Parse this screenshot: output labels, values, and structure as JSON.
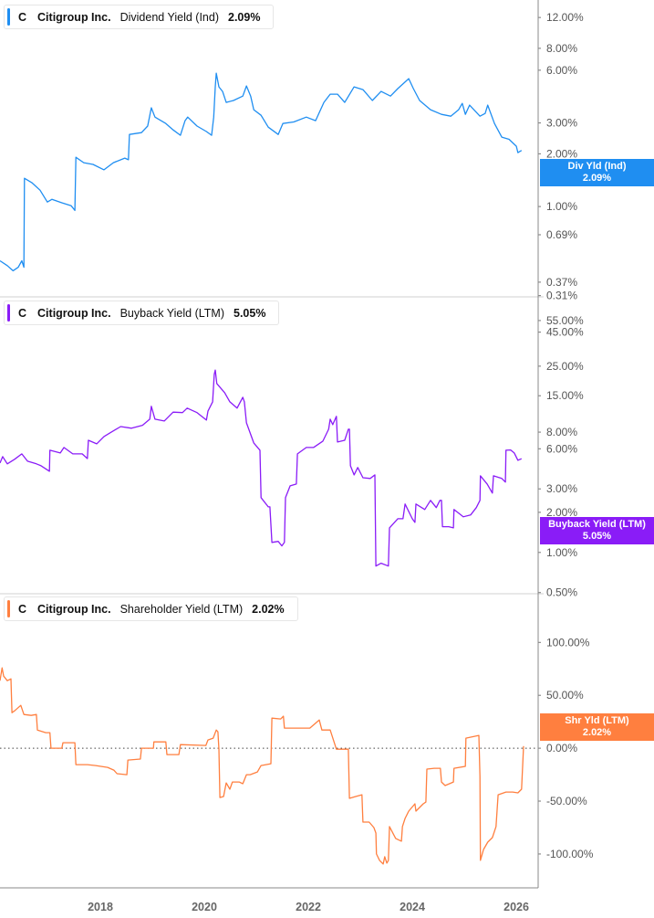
{
  "ticker": "C",
  "company": "Citigroup Inc.",
  "x_axis": {
    "ticks": [
      2018,
      2020,
      2022,
      2024,
      2026
    ],
    "labels": [
      "2018",
      "2020",
      "2022",
      "2024",
      "2026"
    ],
    "xlim": [
      2016.07,
      2026.42
    ]
  },
  "chart_data": [
    {
      "type": "line",
      "metric": "Dividend Yield (Ind)",
      "value": "2.09%",
      "tag_label": "Div Yld (Ind)",
      "color": "#1f8ef1",
      "scale": "log",
      "ylim": [
        0.305,
        15.1
      ],
      "y_ticks": [
        12,
        8,
        6,
        3,
        2,
        1,
        0.69,
        0.37,
        0.31
      ],
      "y_tick_labels": [
        "12.00%",
        "8.00%",
        "6.00%",
        "3.00%",
        "2.00%",
        "1.00%",
        "0.69%",
        "0.37%",
        "0.31%"
      ],
      "points": [
        [
          2016.07,
          0.49
        ],
        [
          2016.21,
          0.46
        ],
        [
          2016.32,
          0.43
        ],
        [
          2016.42,
          0.45
        ],
        [
          2016.49,
          0.49
        ],
        [
          2016.53,
          0.45
        ],
        [
          2016.54,
          1.45
        ],
        [
          2016.68,
          1.37
        ],
        [
          2016.84,
          1.24
        ],
        [
          2016.98,
          1.06
        ],
        [
          2017.07,
          1.1
        ],
        [
          2017.26,
          1.05
        ],
        [
          2017.44,
          1.01
        ],
        [
          2017.51,
          0.95
        ],
        [
          2017.53,
          1.91
        ],
        [
          2017.68,
          1.78
        ],
        [
          2017.86,
          1.74
        ],
        [
          2018.07,
          1.62
        ],
        [
          2018.25,
          1.78
        ],
        [
          2018.47,
          1.89
        ],
        [
          2018.54,
          1.85
        ],
        [
          2018.56,
          2.58
        ],
        [
          2018.79,
          2.64
        ],
        [
          2018.91,
          2.88
        ],
        [
          2018.98,
          3.66
        ],
        [
          2019.05,
          3.24
        ],
        [
          2019.26,
          2.98
        ],
        [
          2019.4,
          2.74
        ],
        [
          2019.54,
          2.55
        ],
        [
          2019.63,
          3.09
        ],
        [
          2019.68,
          3.24
        ],
        [
          2019.86,
          2.88
        ],
        [
          2020.04,
          2.68
        ],
        [
          2020.14,
          2.55
        ],
        [
          2020.18,
          3.24
        ],
        [
          2020.21,
          4.82
        ],
        [
          2020.23,
          5.77
        ],
        [
          2020.28,
          4.82
        ],
        [
          2020.35,
          4.54
        ],
        [
          2020.42,
          3.93
        ],
        [
          2020.56,
          4.03
        ],
        [
          2020.74,
          4.27
        ],
        [
          2020.81,
          4.88
        ],
        [
          2020.89,
          4.27
        ],
        [
          2020.95,
          3.57
        ],
        [
          2021.09,
          3.32
        ],
        [
          2021.23,
          2.84
        ],
        [
          2021.42,
          2.58
        ],
        [
          2021.51,
          2.98
        ],
        [
          2021.72,
          3.04
        ],
        [
          2021.96,
          3.24
        ],
        [
          2022.14,
          3.09
        ],
        [
          2022.3,
          3.93
        ],
        [
          2022.42,
          4.38
        ],
        [
          2022.56,
          4.38
        ],
        [
          2022.7,
          3.93
        ],
        [
          2022.88,
          4.82
        ],
        [
          2023.05,
          4.65
        ],
        [
          2023.23,
          4.03
        ],
        [
          2023.4,
          4.54
        ],
        [
          2023.58,
          4.27
        ],
        [
          2023.72,
          4.71
        ],
        [
          2023.93,
          5.37
        ],
        [
          2024.02,
          4.71
        ],
        [
          2024.14,
          4.03
        ],
        [
          2024.35,
          3.57
        ],
        [
          2024.56,
          3.36
        ],
        [
          2024.74,
          3.28
        ],
        [
          2024.89,
          3.57
        ],
        [
          2024.96,
          3.88
        ],
        [
          2025.02,
          3.36
        ],
        [
          2025.1,
          3.79
        ],
        [
          2025.3,
          3.28
        ],
        [
          2025.4,
          3.4
        ],
        [
          2025.45,
          3.79
        ],
        [
          2025.58,
          2.98
        ],
        [
          2025.72,
          2.49
        ],
        [
          2025.86,
          2.42
        ],
        [
          2026.0,
          2.21
        ],
        [
          2026.03,
          2.03
        ],
        [
          2026.1,
          2.09
        ]
      ]
    },
    {
      "type": "line",
      "metric": "Buyback Yield (LTM)",
      "value": "5.05%",
      "tag_label": "Buyback Yield (LTM)",
      "color": "#8a1cf7",
      "scale": "log",
      "ylim": [
        0.49,
        82.8
      ],
      "y_ticks": [
        55,
        45,
        25,
        15,
        8,
        6,
        3,
        2,
        1,
        0.5
      ],
      "y_tick_labels": [
        "55.00%",
        "45.00%",
        "25.00%",
        "15.00%",
        "8.00%",
        "6.00%",
        "3.00%",
        "2.00%",
        "1.00%",
        "0.50%"
      ],
      "points": [
        [
          2016.07,
          4.69
        ],
        [
          2016.12,
          5.24
        ],
        [
          2016.21,
          4.62
        ],
        [
          2016.35,
          5.0
        ],
        [
          2016.49,
          5.49
        ],
        [
          2016.6,
          4.84
        ],
        [
          2016.77,
          4.62
        ],
        [
          2016.86,
          4.47
        ],
        [
          2017.02,
          4.07
        ],
        [
          2017.03,
          5.85
        ],
        [
          2017.23,
          5.58
        ],
        [
          2017.3,
          6.13
        ],
        [
          2017.47,
          5.49
        ],
        [
          2017.65,
          5.49
        ],
        [
          2017.75,
          5.07
        ],
        [
          2017.77,
          6.95
        ],
        [
          2017.93,
          6.53
        ],
        [
          2018.07,
          7.41
        ],
        [
          2018.21,
          8.0
        ],
        [
          2018.39,
          8.81
        ],
        [
          2018.6,
          8.55
        ],
        [
          2018.81,
          9.0
        ],
        [
          2018.95,
          10.0
        ],
        [
          2018.98,
          12.5
        ],
        [
          2019.05,
          10.0
        ],
        [
          2019.23,
          9.69
        ],
        [
          2019.4,
          11.3
        ],
        [
          2019.58,
          11.2
        ],
        [
          2019.67,
          12.1
        ],
        [
          2019.86,
          11.2
        ],
        [
          2020.04,
          9.84
        ],
        [
          2020.07,
          11.5
        ],
        [
          2020.16,
          13.5
        ],
        [
          2020.19,
          21.7
        ],
        [
          2020.21,
          23.4
        ],
        [
          2020.24,
          18.5
        ],
        [
          2020.39,
          15.8
        ],
        [
          2020.49,
          13.5
        ],
        [
          2020.63,
          12.1
        ],
        [
          2020.74,
          14.6
        ],
        [
          2020.77,
          13.5
        ],
        [
          2020.81,
          9.39
        ],
        [
          2020.95,
          6.64
        ],
        [
          2021.07,
          5.85
        ],
        [
          2021.09,
          2.58
        ],
        [
          2021.23,
          2.2
        ],
        [
          2021.26,
          2.2
        ],
        [
          2021.3,
          1.19
        ],
        [
          2021.42,
          1.21
        ],
        [
          2021.49,
          1.12
        ],
        [
          2021.54,
          1.19
        ],
        [
          2021.56,
          2.58
        ],
        [
          2021.65,
          3.16
        ],
        [
          2021.77,
          3.26
        ],
        [
          2021.79,
          5.49
        ],
        [
          2021.96,
          6.13
        ],
        [
          2022.1,
          6.13
        ],
        [
          2022.28,
          6.85
        ],
        [
          2022.39,
          8.41
        ],
        [
          2022.42,
          10.0
        ],
        [
          2022.47,
          9.1
        ],
        [
          2022.54,
          10.5
        ],
        [
          2022.56,
          6.74
        ],
        [
          2022.7,
          6.95
        ],
        [
          2022.77,
          8.41
        ],
        [
          2022.79,
          8.41
        ],
        [
          2022.81,
          4.47
        ],
        [
          2022.88,
          3.82
        ],
        [
          2022.95,
          4.34
        ],
        [
          2023.05,
          3.64
        ],
        [
          2023.19,
          3.59
        ],
        [
          2023.28,
          3.82
        ],
        [
          2023.3,
          0.79
        ],
        [
          2023.4,
          0.83
        ],
        [
          2023.54,
          0.79
        ],
        [
          2023.56,
          1.53
        ],
        [
          2023.72,
          1.79
        ],
        [
          2023.82,
          1.79
        ],
        [
          2023.86,
          2.31
        ],
        [
          2024.0,
          1.79
        ],
        [
          2024.05,
          1.68
        ],
        [
          2024.07,
          2.31
        ],
        [
          2024.24,
          2.1
        ],
        [
          2024.35,
          2.46
        ],
        [
          2024.46,
          2.17
        ],
        [
          2024.53,
          2.46
        ],
        [
          2024.56,
          2.46
        ],
        [
          2024.58,
          1.56
        ],
        [
          2024.7,
          1.56
        ],
        [
          2024.79,
          1.53
        ],
        [
          2024.8,
          2.1
        ],
        [
          2024.98,
          1.85
        ],
        [
          2025.12,
          1.91
        ],
        [
          2025.23,
          2.17
        ],
        [
          2025.3,
          2.46
        ],
        [
          2025.31,
          3.76
        ],
        [
          2025.44,
          3.26
        ],
        [
          2025.54,
          2.79
        ],
        [
          2025.56,
          3.76
        ],
        [
          2025.72,
          3.59
        ],
        [
          2025.79,
          3.37
        ],
        [
          2025.8,
          5.85
        ],
        [
          2025.89,
          5.88
        ],
        [
          2025.96,
          5.58
        ],
        [
          2026.03,
          4.92
        ],
        [
          2026.1,
          5.05
        ]
      ]
    },
    {
      "type": "line",
      "metric": "Shareholder Yield (LTM)",
      "value": "2.02%",
      "tag_label": "Shr Yld (LTM)",
      "color": "#ff7f3f",
      "scale": "linear",
      "ylim": [
        -132,
        146
      ],
      "zero_line": true,
      "y_ticks": [
        100,
        50,
        0,
        -50,
        -100
      ],
      "y_tick_labels": [
        "100.00%",
        "50.00%",
        "0.00%",
        "-50.00%",
        "-100.00%"
      ],
      "points": [
        [
          2016.07,
          63.8
        ],
        [
          2016.11,
          75.9
        ],
        [
          2016.14,
          68.1
        ],
        [
          2016.21,
          63.8
        ],
        [
          2016.28,
          65.5
        ],
        [
          2016.3,
          33.6
        ],
        [
          2016.35,
          35.3
        ],
        [
          2016.47,
          40.5
        ],
        [
          2016.53,
          31.9
        ],
        [
          2016.67,
          31.0
        ],
        [
          2016.77,
          31.9
        ],
        [
          2016.79,
          17.2
        ],
        [
          2016.95,
          14.7
        ],
        [
          2017.03,
          14.7
        ],
        [
          2017.05,
          0
        ],
        [
          2017.26,
          0
        ],
        [
          2017.28,
          5.2
        ],
        [
          2017.51,
          5.2
        ],
        [
          2017.53,
          -15.5
        ],
        [
          2017.75,
          -15.5
        ],
        [
          2017.91,
          -16.4
        ],
        [
          2018.14,
          -18.1
        ],
        [
          2018.26,
          -20.7
        ],
        [
          2018.32,
          -24.1
        ],
        [
          2018.51,
          -25.0
        ],
        [
          2018.53,
          -11.2
        ],
        [
          2018.77,
          -10.3
        ],
        [
          2018.79,
          0
        ],
        [
          2019.02,
          0
        ],
        [
          2019.03,
          6.0
        ],
        [
          2019.26,
          6.0
        ],
        [
          2019.28,
          -6.0
        ],
        [
          2019.51,
          -6.0
        ],
        [
          2019.54,
          3.4
        ],
        [
          2020.03,
          2.6
        ],
        [
          2020.07,
          7.8
        ],
        [
          2020.17,
          9.5
        ],
        [
          2020.23,
          17.2
        ],
        [
          2020.26,
          15.5
        ],
        [
          2020.28,
          -0.9
        ],
        [
          2020.3,
          -46.6
        ],
        [
          2020.37,
          -45.7
        ],
        [
          2020.42,
          -32.8
        ],
        [
          2020.49,
          -38.8
        ],
        [
          2020.54,
          -31.9
        ],
        [
          2020.67,
          -31.9
        ],
        [
          2020.74,
          -33.6
        ],
        [
          2020.81,
          -25.0
        ],
        [
          2020.88,
          -25.0
        ],
        [
          2021.02,
          -22.4
        ],
        [
          2021.09,
          -16.4
        ],
        [
          2021.28,
          -14.7
        ],
        [
          2021.3,
          28.4
        ],
        [
          2021.47,
          27.6
        ],
        [
          2021.52,
          30.2
        ],
        [
          2021.54,
          19.0
        ],
        [
          2021.86,
          19.0
        ],
        [
          2022.03,
          19.0
        ],
        [
          2022.21,
          26.7
        ],
        [
          2022.26,
          17.2
        ],
        [
          2022.42,
          17.2
        ],
        [
          2022.54,
          -0.9
        ],
        [
          2022.77,
          -0.9
        ],
        [
          2022.79,
          -47.4
        ],
        [
          2022.91,
          -45.7
        ],
        [
          2023.03,
          -44.0
        ],
        [
          2023.05,
          -69.8
        ],
        [
          2023.17,
          -69.8
        ],
        [
          2023.26,
          -75.0
        ],
        [
          2023.3,
          -80.2
        ],
        [
          2023.31,
          -100
        ],
        [
          2023.37,
          -106
        ],
        [
          2023.44,
          -109.5
        ],
        [
          2023.47,
          -102.6
        ],
        [
          2023.51,
          -108.6
        ],
        [
          2023.54,
          -106
        ],
        [
          2023.56,
          -74.1
        ],
        [
          2023.68,
          -85.3
        ],
        [
          2023.79,
          -87.9
        ],
        [
          2023.81,
          -74.1
        ],
        [
          2023.86,
          -66.4
        ],
        [
          2023.93,
          -59.5
        ],
        [
          2024.05,
          -52.6
        ],
        [
          2024.07,
          -59.5
        ],
        [
          2024.21,
          -52.6
        ],
        [
          2024.26,
          -50.9
        ],
        [
          2024.28,
          -19.8
        ],
        [
          2024.42,
          -19.0
        ],
        [
          2024.54,
          -19.0
        ],
        [
          2024.56,
          -31.9
        ],
        [
          2024.63,
          -35.3
        ],
        [
          2024.79,
          -31.9
        ],
        [
          2024.8,
          -19.0
        ],
        [
          2025.02,
          -17.2
        ],
        [
          2025.03,
          9.5
        ],
        [
          2025.28,
          12.1
        ],
        [
          2025.3,
          -26.7
        ],
        [
          2025.31,
          -106
        ],
        [
          2025.37,
          -95.7
        ],
        [
          2025.45,
          -88.8
        ],
        [
          2025.54,
          -84.5
        ],
        [
          2025.61,
          -74.1
        ],
        [
          2025.65,
          -44.0
        ],
        [
          2025.8,
          -41.4
        ],
        [
          2025.93,
          -41.4
        ],
        [
          2026.03,
          -42.2
        ],
        [
          2026.1,
          -38.8
        ],
        [
          2026.14,
          2.02
        ]
      ]
    }
  ]
}
